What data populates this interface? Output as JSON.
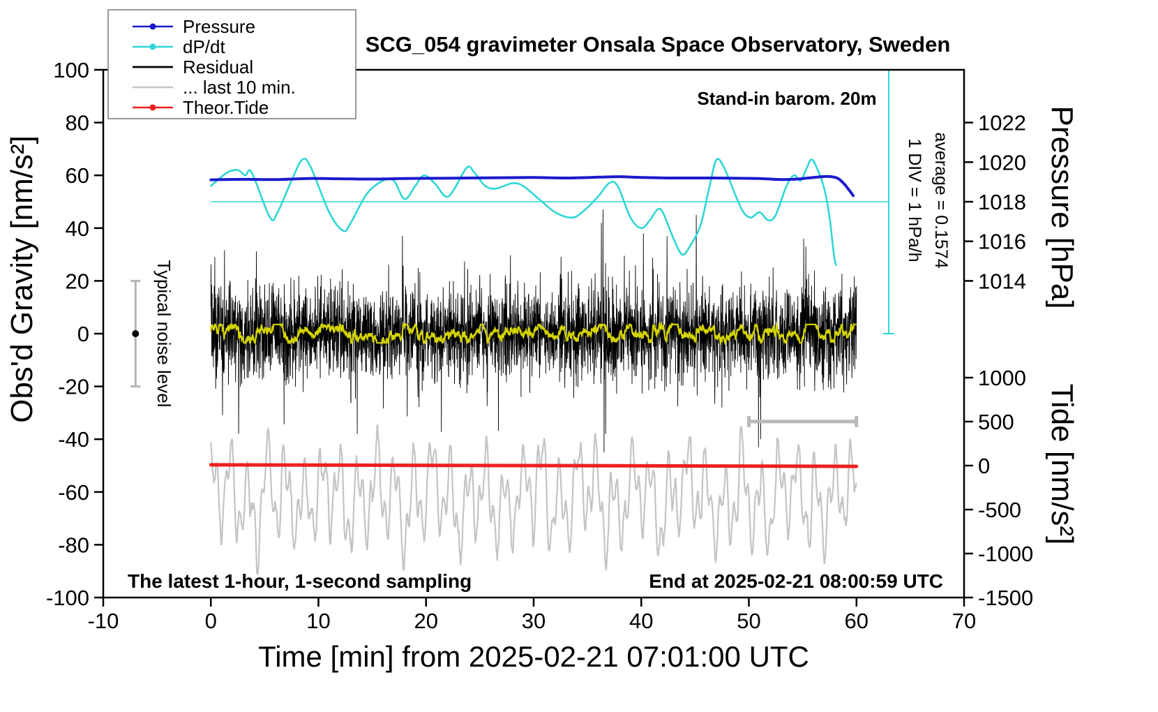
{
  "chart_data": {
    "type": "line",
    "title": "SCG_054 gravimeter Onsala Space Observatory, Sweden",
    "xlabel": "Time [min] from 2025-02-21 07:01:00 UTC",
    "ylabel_left": "Obs'd Gravity [nm/s²]",
    "ylabel_right_pressure": "Pressure [hPa]",
    "ylabel_right_tide": "Tide [nm/s²]",
    "xlim": [
      -10,
      70
    ],
    "ylim_left": [
      -100,
      100
    ],
    "xticks": [
      -10,
      0,
      10,
      20,
      30,
      40,
      50,
      60,
      70
    ],
    "yticks_left": [
      -100,
      -80,
      -60,
      -40,
      -20,
      0,
      20,
      40,
      60,
      80,
      100
    ],
    "pressure_ticks": [
      {
        "label": "1022",
        "g": 80
      },
      {
        "label": "1020",
        "g": 65
      },
      {
        "label": "1018",
        "g": 50
      },
      {
        "label": "1016",
        "g": 35
      },
      {
        "label": "1014",
        "g": 20
      }
    ],
    "tide_ticks": [
      {
        "label": "1000",
        "g": -16.67
      },
      {
        "label": "500",
        "g": -33.33
      },
      {
        "label": "0",
        "g": -50
      },
      {
        "label": "-500",
        "g": -66.67
      },
      {
        "label": "-1000",
        "g": -83.33
      },
      {
        "label": "-1500",
        "g": -100
      }
    ],
    "legend": [
      {
        "label": "Pressure",
        "color": "#1a1acc",
        "dot": true
      },
      {
        "label": "dP/dt",
        "color": "#2fd6d6",
        "dot": true
      },
      {
        "label": "Residual",
        "color": "#000000",
        "dot": false
      },
      {
        "label": "... last 10 min.",
        "color": "#c4c4c4",
        "dot": false
      },
      {
        "label": "Theor.Tide",
        "color": "#ee2020",
        "dot": true
      }
    ],
    "annotations": {
      "stand_in": "Stand-in barom. 20m",
      "div_scale": "1 DIV = 1 hPa/h",
      "average": "average = 0.1574",
      "noise_label": "Typical noise level",
      "bottom_left": "The latest 1-hour, 1-second sampling",
      "bottom_right": "End at 2025-02-21 08:00:59 UTC"
    },
    "series": {
      "pressure": {
        "color": "#1a1acc",
        "points": [
          [
            0,
            58.3
          ],
          [
            3,
            58.5
          ],
          [
            6,
            58.4
          ],
          [
            9,
            58.8
          ],
          [
            12,
            58.7
          ],
          [
            15,
            58.6
          ],
          [
            18,
            58.8
          ],
          [
            21,
            58.9
          ],
          [
            24,
            59.0
          ],
          [
            27,
            59.1
          ],
          [
            30,
            59.2
          ],
          [
            33,
            59.0
          ],
          [
            36,
            59.3
          ],
          [
            38,
            59.5
          ],
          [
            40,
            59.2
          ],
          [
            43,
            59.0
          ],
          [
            46,
            59.0
          ],
          [
            49,
            58.9
          ],
          [
            51,
            58.8
          ],
          [
            53,
            58.4
          ],
          [
            54.5,
            58.6
          ],
          [
            56,
            59.2
          ],
          [
            57.3,
            59.6
          ],
          [
            58.2,
            59.0
          ],
          [
            58.8,
            57.0
          ],
          [
            59.3,
            54.5
          ],
          [
            59.7,
            52.3
          ]
        ]
      },
      "dpdt": {
        "color": "#2fd6d6",
        "refline_g": 50,
        "scalebar": {
          "x_min": 63,
          "g_top": 100,
          "g_bottom": 0
        },
        "points": [
          [
            0,
            56
          ],
          [
            1.5,
            61
          ],
          [
            2.5,
            62
          ],
          [
            3.2,
            60
          ],
          [
            3.8,
            61
          ],
          [
            5.5,
            44
          ],
          [
            6.2,
            46
          ],
          [
            7.5,
            58
          ],
          [
            8.5,
            66
          ],
          [
            9.3,
            63
          ],
          [
            11,
            46
          ],
          [
            12.3,
            39
          ],
          [
            13,
            42
          ],
          [
            14.5,
            53
          ],
          [
            16,
            58
          ],
          [
            17,
            58
          ],
          [
            18,
            51
          ],
          [
            19,
            56
          ],
          [
            19.8,
            60
          ],
          [
            20.8,
            57
          ],
          [
            21.8,
            52
          ],
          [
            22.5,
            54
          ],
          [
            23.8,
            63
          ],
          [
            24.5,
            61
          ],
          [
            25.5,
            56
          ],
          [
            26.5,
            55
          ],
          [
            28,
            57
          ],
          [
            29,
            56
          ],
          [
            30.5,
            51
          ],
          [
            32,
            46
          ],
          [
            33.5,
            44
          ],
          [
            34.5,
            46
          ],
          [
            36,
            52
          ],
          [
            37,
            57
          ],
          [
            37.8,
            56
          ],
          [
            39,
            44
          ],
          [
            40,
            40
          ],
          [
            40.8,
            43
          ],
          [
            41.5,
            47
          ],
          [
            42,
            46
          ],
          [
            43,
            36
          ],
          [
            43.8,
            30
          ],
          [
            44.5,
            33
          ],
          [
            45.5,
            41
          ],
          [
            46.3,
            55
          ],
          [
            47,
            66
          ],
          [
            47.8,
            62
          ],
          [
            48.8,
            52
          ],
          [
            49.5,
            46
          ],
          [
            50.2,
            44
          ],
          [
            51,
            46
          ],
          [
            51.8,
            43
          ],
          [
            52.5,
            45
          ],
          [
            53.5,
            56
          ],
          [
            54.2,
            60
          ],
          [
            54.8,
            58
          ],
          [
            55.3,
            62
          ],
          [
            55.8,
            66
          ],
          [
            56.3,
            63
          ],
          [
            57,
            55
          ],
          [
            57.5,
            44
          ],
          [
            57.9,
            30
          ],
          [
            58.1,
            26
          ]
        ]
      },
      "residual": {
        "color": "#000000",
        "gen": {
          "seed": 11,
          "n": 3600,
          "x0": 0,
          "x1": 60,
          "std": 8.5,
          "burst_prob": 0.045,
          "burst_std": 16,
          "clip": 45
        },
        "spikes": [
          [
            13.6,
            -38
          ],
          [
            17.8,
            37
          ],
          [
            36.3,
            42
          ],
          [
            36.45,
            47
          ],
          [
            36.55,
            -45
          ],
          [
            36.7,
            -38
          ],
          [
            40.2,
            38
          ],
          [
            42.4,
            37
          ],
          [
            50.9,
            -43
          ],
          [
            51.1,
            -40
          ],
          [
            55.1,
            36
          ],
          [
            55.3,
            33
          ]
        ]
      },
      "residual_smooth": {
        "color": "#d4d400",
        "alpha": 0.03,
        "gain": 2.0,
        "clip": 3.5
      },
      "last10": {
        "color": "#c4c4c4",
        "gen": {
          "seed": 23,
          "n": 1500,
          "x0": 0,
          "x1": 60,
          "center": -62,
          "components": [
            [
              13,
              3.7,
              1.0
            ],
            [
              8,
              9.3,
              2.0
            ],
            [
              5,
              1.3,
              0.3
            ]
          ],
          "jitter": 1.2,
          "clip_lo": -91,
          "clip_hi": -33
        }
      },
      "tide": {
        "color": "#ee2020",
        "points": [
          [
            0,
            -49.7
          ],
          [
            60,
            -50.3
          ]
        ]
      }
    },
    "noise_bar": {
      "x_min": -7,
      "g_lo": -20,
      "g_hi": 20,
      "color": "#b5b5b5"
    },
    "last10_bar": {
      "x0": 50,
      "x1": 60,
      "g": -33.3,
      "color": "#b8b8b8"
    }
  }
}
